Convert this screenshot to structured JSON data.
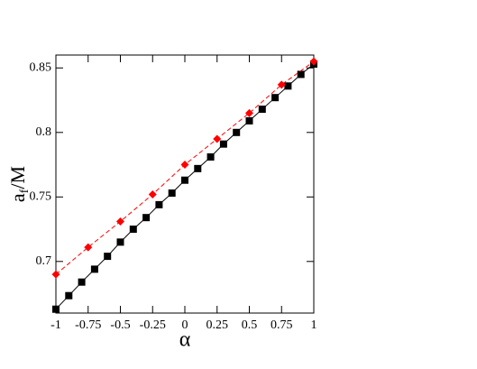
{
  "chart_data": {
    "type": "line",
    "xlabel": "α",
    "ylabel_parts": [
      "a",
      "f",
      "/M"
    ],
    "xlim": [
      -1,
      1
    ],
    "ylim": [
      0.66,
      0.86
    ],
    "xticks": [
      -1,
      -0.75,
      -0.5,
      -0.25,
      0,
      0.25,
      0.5,
      0.75,
      1
    ],
    "yticks": [
      0.7,
      0.75,
      0.8,
      0.85
    ],
    "series": [
      {
        "color": "#000000",
        "marker": "square",
        "line": "solid",
        "x": [
          -1,
          -0.9,
          -0.8,
          -0.7,
          -0.6,
          -0.5,
          -0.4,
          -0.3,
          -0.2,
          -0.1,
          0,
          0.1,
          0.2,
          0.3,
          0.4,
          0.5,
          0.6,
          0.7,
          0.8,
          0.9,
          1
        ],
        "values": [
          0.663,
          0.6735,
          0.684,
          0.694,
          0.704,
          0.715,
          0.725,
          0.734,
          0.744,
          0.753,
          0.763,
          0.772,
          0.781,
          0.791,
          0.8,
          0.809,
          0.818,
          0.827,
          0.836,
          0.845,
          0.853
        ]
      },
      {
        "color": "#ff0000",
        "marker": "diamond",
        "line": "dashed",
        "x": [
          -1,
          -0.75,
          -0.5,
          -0.25,
          0,
          0.25,
          0.5,
          0.75,
          1
        ],
        "values": [
          0.69,
          0.711,
          0.731,
          0.752,
          0.775,
          0.795,
          0.815,
          0.837,
          0.855
        ]
      }
    ]
  }
}
